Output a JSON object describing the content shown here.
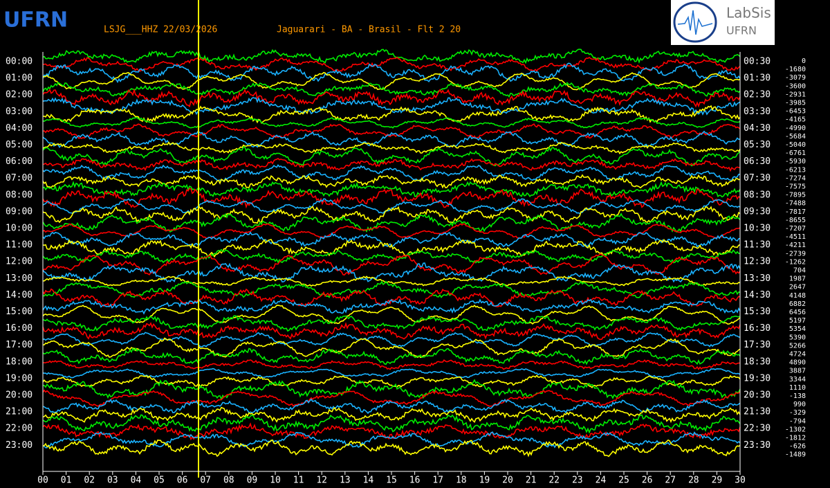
{
  "header": {
    "station": "LSJG___HHZ 22/03/2026",
    "location": "Jaguarari - BA - Brasil - Flt 2 20",
    "left_logo": "UFRN",
    "right_logo": {
      "name": "LabSis",
      "sub": "UFRN"
    }
  },
  "left_labels": [
    "00:00",
    "01:00",
    "02:00",
    "03:00",
    "04:00",
    "05:00",
    "06:00",
    "07:00",
    "08:00",
    "09:00",
    "10:00",
    "11:00",
    "12:00",
    "13:00",
    "14:00",
    "15:00",
    "16:00",
    "17:00",
    "18:00",
    "19:00",
    "20:00",
    "21:00",
    "22:00",
    "23:00"
  ],
  "right_labels": [
    "00:30",
    "01:30",
    "02:30",
    "03:30",
    "04:30",
    "05:30",
    "06:30",
    "07:30",
    "08:30",
    "09:30",
    "10:30",
    "11:30",
    "12:30",
    "13:30",
    "14:30",
    "15:30",
    "16:30",
    "17:30",
    "18:30",
    "19:30",
    "20:30",
    "21:30",
    "22:30",
    "23:30"
  ],
  "offsets": [
    0,
    -1680,
    -3079,
    -3600,
    -2931,
    -3985,
    -6453,
    -4165,
    -4990,
    -5684,
    -5040,
    -6761,
    -5930,
    -6213,
    -7274,
    -7575,
    -7895,
    -7488,
    -7817,
    -8655,
    -7207,
    -4511,
    -4211,
    -2739,
    -1262,
    704,
    1987,
    2647,
    4148,
    6882,
    6456,
    5197,
    5354,
    5390,
    5266,
    4724,
    4890,
    3887,
    3344,
    1110,
    -138,
    990,
    -329,
    -794,
    -1302,
    -1812,
    -626,
    -1489
  ],
  "minute_labels": [
    "00",
    "01",
    "02",
    "03",
    "04",
    "05",
    "06",
    "07",
    "08",
    "09",
    "10",
    "11",
    "12",
    "13",
    "14",
    "15",
    "16",
    "17",
    "18",
    "19",
    "20",
    "21",
    "22",
    "23",
    "24",
    "25",
    "26",
    "27",
    "28",
    "29",
    "30"
  ]
}
